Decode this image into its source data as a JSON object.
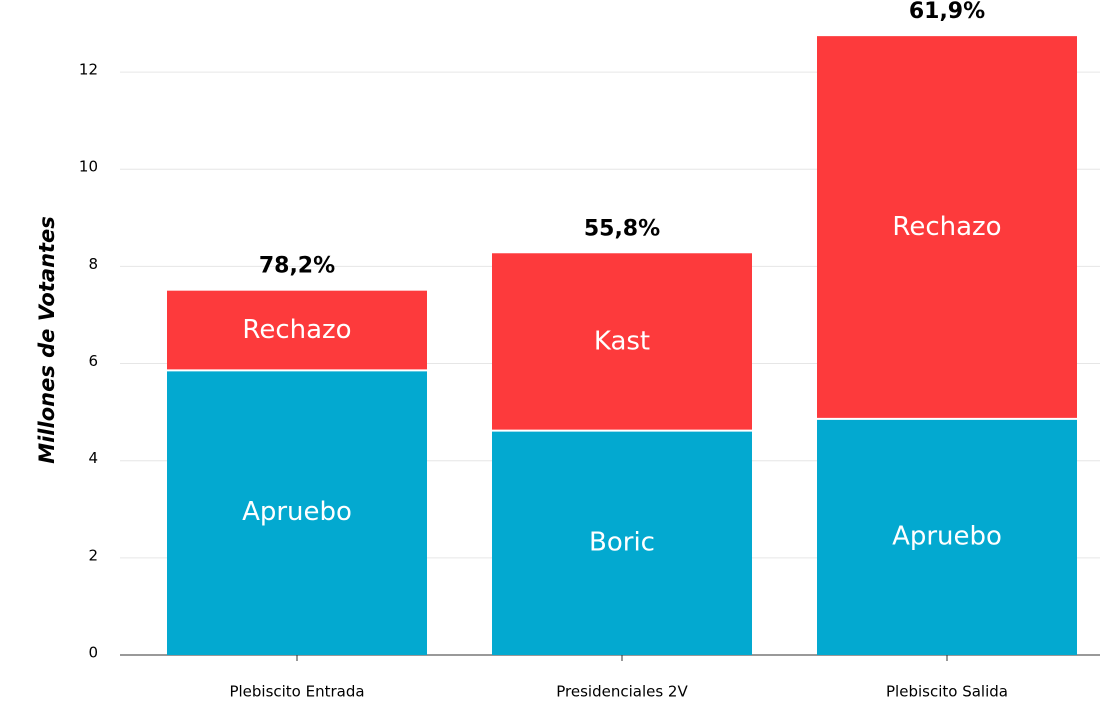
{
  "chart_data": {
    "type": "stacked_bar",
    "ylabel": "Millones de Votantes",
    "categories": [
      "Plebiscito Entrada",
      "Presidenciales 2V",
      "Plebiscito Salida"
    ],
    "series": [
      {
        "color": "#03a9d0",
        "values": [
          5.86,
          4.62,
          4.86
        ],
        "labels": [
          "Apruebo",
          "Boric",
          "Apruebo"
        ]
      },
      {
        "color": "#fd3a3c",
        "values": [
          1.64,
          3.65,
          7.88
        ],
        "labels": [
          "Rechazo",
          "Kast",
          "Rechazo"
        ]
      }
    ],
    "annotations": [
      "78,2%",
      "55,8%",
      "61,9%"
    ],
    "ylim": [
      0,
      13
    ],
    "yticks": [
      0,
      2,
      4,
      6,
      8,
      10,
      12
    ],
    "grid": true
  }
}
